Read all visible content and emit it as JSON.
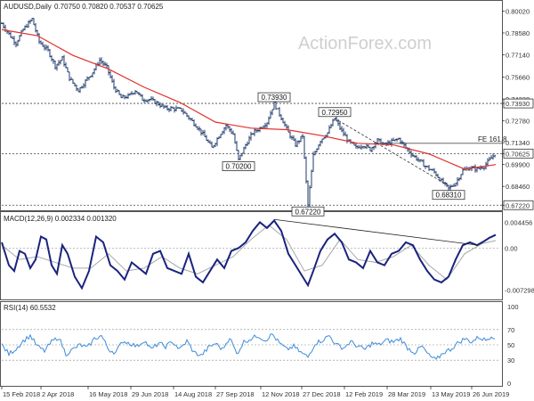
{
  "chart_data": [
    {
      "type": "candlestick",
      "title": "AUDUSD,Daily",
      "ohlc_readout": "0.70750 0.70820 0.70537 0.70625",
      "watermark": "ActionForex.com",
      "last_price": 0.70625,
      "y_ticks": [
        "0.80020",
        "0.78580",
        "0.77140",
        "0.75660",
        "0.74220",
        "0.73930",
        "0.72780",
        "0.71340",
        "0.70625",
        "0.69900",
        "0.68460",
        "0.67220"
      ],
      "y_range": [
        0.67,
        0.804
      ],
      "x_labels": [
        "15 Feb 2018",
        "2 Apr 2018",
        "16 May 2018",
        "29 Jun 2018",
        "14 Aug 2018",
        "27 Sep 2018",
        "12 Nov 2018",
        "27 Dec 2018",
        "12 Feb 2019",
        "28 Mar 2019",
        "13 May 2019",
        "26 Jun 2019"
      ],
      "close_path": [
        [
          0,
          0.792
        ],
        [
          8,
          0.785
        ],
        [
          16,
          0.779
        ],
        [
          24,
          0.788
        ],
        [
          34,
          0.795
        ],
        [
          42,
          0.78
        ],
        [
          52,
          0.774
        ],
        [
          60,
          0.764
        ],
        [
          68,
          0.769
        ],
        [
          76,
          0.756
        ],
        [
          86,
          0.748
        ],
        [
          94,
          0.754
        ],
        [
          102,
          0.76
        ],
        [
          110,
          0.768
        ],
        [
          118,
          0.763
        ],
        [
          126,
          0.75
        ],
        [
          134,
          0.743
        ],
        [
          142,
          0.744
        ],
        [
          150,
          0.748
        ],
        [
          158,
          0.742
        ],
        [
          166,
          0.742
        ],
        [
          176,
          0.739
        ],
        [
          184,
          0.736
        ],
        [
          192,
          0.736
        ],
        [
          202,
          0.735
        ],
        [
          210,
          0.73
        ],
        [
          218,
          0.725
        ],
        [
          226,
          0.719
        ],
        [
          236,
          0.71
        ],
        [
          244,
          0.718
        ],
        [
          252,
          0.725
        ],
        [
          260,
          0.719
        ],
        [
          266,
          0.702
        ],
        [
          274,
          0.712
        ],
        [
          282,
          0.72
        ],
        [
          290,
          0.723
        ],
        [
          298,
          0.727
        ],
        [
          306,
          0.7393
        ],
        [
          314,
          0.73
        ],
        [
          322,
          0.72
        ],
        [
          330,
          0.712
        ],
        [
          338,
          0.718
        ],
        [
          344,
          0.6722
        ],
        [
          350,
          0.705
        ],
        [
          358,
          0.715
        ],
        [
          366,
          0.72
        ],
        [
          374,
          0.7295
        ],
        [
          382,
          0.721
        ],
        [
          390,
          0.714
        ],
        [
          398,
          0.71
        ],
        [
          406,
          0.712
        ],
        [
          414,
          0.709
        ],
        [
          422,
          0.715
        ],
        [
          430,
          0.712
        ],
        [
          438,
          0.714
        ],
        [
          446,
          0.716
        ],
        [
          454,
          0.71
        ],
        [
          462,
          0.705
        ],
        [
          470,
          0.701
        ],
        [
          478,
          0.697
        ],
        [
          486,
          0.694
        ],
        [
          494,
          0.688
        ],
        [
          502,
          0.6831
        ],
        [
          510,
          0.687
        ],
        [
          518,
          0.695
        ],
        [
          526,
          0.697
        ],
        [
          534,
          0.696
        ],
        [
          542,
          0.698
        ],
        [
          548,
          0.702
        ],
        [
          554,
          0.7062
        ]
      ],
      "sma_path": [
        [
          0,
          0.788
        ],
        [
          40,
          0.784
        ],
        [
          80,
          0.771
        ],
        [
          120,
          0.762
        ],
        [
          160,
          0.75
        ],
        [
          200,
          0.74
        ],
        [
          240,
          0.727
        ],
        [
          280,
          0.723
        ],
        [
          320,
          0.722
        ],
        [
          360,
          0.718
        ],
        [
          400,
          0.713
        ],
        [
          440,
          0.712
        ],
        [
          480,
          0.706
        ],
        [
          520,
          0.696
        ],
        [
          555,
          0.699
        ]
      ],
      "horizontal_levels": [
        0.7393,
        0.7062,
        0.6722
      ],
      "fe_level": 0.713,
      "fe_label": "FE 161.8",
      "price_labels": [
        {
          "text": "0.73930",
          "x": 306,
          "y": 0.7393,
          "pos": "above"
        },
        {
          "text": "0.72950",
          "x": 374,
          "y": 0.7295,
          "pos": "above"
        },
        {
          "text": "0.70200",
          "x": 266,
          "y": 0.702,
          "pos": "below"
        },
        {
          "text": "0.68310",
          "x": 502,
          "y": 0.6831,
          "pos": "below"
        },
        {
          "text": "0.67220",
          "x": 344,
          "y": 0.6722,
          "pos": "below"
        }
      ],
      "trend_lines": [
        {
          "from": [
            374,
            0.7295
          ],
          "to": [
            505,
            0.684
          ]
        }
      ]
    },
    {
      "type": "line",
      "title": "MACD(12,26,9) 0.002334 0.001320",
      "y_ticks": [
        "0.004456",
        "0.00",
        "-0.007298"
      ],
      "y_range": [
        -0.0085,
        0.0055
      ],
      "macd_path": [
        [
          0,
          0.001
        ],
        [
          8,
          -0.003
        ],
        [
          14,
          -0.004
        ],
        [
          20,
          -0.0005
        ],
        [
          26,
          -0.001
        ],
        [
          32,
          -0.0035
        ],
        [
          38,
          -0.002
        ],
        [
          44,
          0.002
        ],
        [
          50,
          0.0015
        ],
        [
          56,
          -0.003
        ],
        [
          62,
          -0.0045
        ],
        [
          68,
          0.0005
        ],
        [
          74,
          -0.001
        ],
        [
          82,
          -0.005
        ],
        [
          90,
          -0.007
        ],
        [
          98,
          -0.004
        ],
        [
          106,
          0.002
        ],
        [
          114,
          0.001
        ],
        [
          122,
          -0.003
        ],
        [
          130,
          -0.004
        ],
        [
          138,
          -0.0055
        ],
        [
          146,
          -0.0025
        ],
        [
          154,
          -0.0035
        ],
        [
          162,
          -0.0045
        ],
        [
          170,
          -0.001
        ],
        [
          178,
          -0.0005
        ],
        [
          186,
          -0.0035
        ],
        [
          194,
          -0.004
        ],
        [
          202,
          -0.0045
        ],
        [
          210,
          -0.001
        ],
        [
          218,
          -0.005
        ],
        [
          226,
          -0.006
        ],
        [
          234,
          -0.004
        ],
        [
          242,
          -0.002
        ],
        [
          250,
          -0.0035
        ],
        [
          258,
          -0.0005
        ],
        [
          266,
          0.0
        ],
        [
          274,
          0.001
        ],
        [
          282,
          0.003
        ],
        [
          290,
          0.0045
        ],
        [
          298,
          0.0035
        ],
        [
          306,
          0.0048
        ],
        [
          314,
          0.003
        ],
        [
          322,
          -0.001
        ],
        [
          330,
          -0.003
        ],
        [
          338,
          -0.005
        ],
        [
          344,
          -0.0065
        ],
        [
          350,
          -0.004
        ],
        [
          358,
          -0.0005
        ],
        [
          366,
          0.0015
        ],
        [
          374,
          0.0025
        ],
        [
          382,
          0.001
        ],
        [
          390,
          -0.002
        ],
        [
          398,
          -0.0025
        ],
        [
          406,
          -0.0035
        ],
        [
          414,
          -0.0005
        ],
        [
          422,
          -0.0025
        ],
        [
          430,
          -0.003
        ],
        [
          438,
          -0.001
        ],
        [
          446,
          -0.0005
        ],
        [
          454,
          0.001
        ],
        [
          462,
          0.0005
        ],
        [
          470,
          -0.002
        ],
        [
          478,
          -0.004
        ],
        [
          486,
          -0.0055
        ],
        [
          494,
          -0.006
        ],
        [
          502,
          -0.005
        ],
        [
          510,
          -0.002
        ],
        [
          518,
          0.0005
        ],
        [
          526,
          0.001
        ],
        [
          534,
          0.0005
        ],
        [
          542,
          0.0012
        ],
        [
          548,
          0.0018
        ],
        [
          555,
          0.0023
        ]
      ],
      "signal_path": [
        [
          0,
          0.0005
        ],
        [
          20,
          -0.002
        ],
        [
          40,
          -0.0015
        ],
        [
          60,
          -0.0025
        ],
        [
          80,
          -0.0035
        ],
        [
          100,
          -0.0035
        ],
        [
          120,
          -0.001
        ],
        [
          140,
          -0.004
        ],
        [
          160,
          -0.0035
        ],
        [
          180,
          -0.0015
        ],
        [
          200,
          -0.0035
        ],
        [
          220,
          -0.0045
        ],
        [
          240,
          -0.003
        ],
        [
          260,
          -0.0015
        ],
        [
          280,
          0.0015
        ],
        [
          300,
          0.004
        ],
        [
          320,
          0.0015
        ],
        [
          340,
          -0.004
        ],
        [
          360,
          -0.003
        ],
        [
          380,
          0.0015
        ],
        [
          400,
          -0.002
        ],
        [
          420,
          -0.0025
        ],
        [
          440,
          -0.0015
        ],
        [
          460,
          0.0005
        ],
        [
          480,
          -0.003
        ],
        [
          500,
          -0.0055
        ],
        [
          520,
          -0.001
        ],
        [
          540,
          0.0008
        ],
        [
          555,
          0.0013
        ]
      ],
      "trend_lines": [
        {
          "from": [
            306,
            0.005
          ],
          "to": [
            535,
            0.0005
          ]
        }
      ]
    },
    {
      "type": "line",
      "title": "RSI(14) 60.5532",
      "y_ticks": [
        "100",
        "70",
        "50",
        "30",
        "0"
      ],
      "y_range": [
        0,
        100
      ],
      "rsi_path": [
        [
          0,
          50
        ],
        [
          8,
          38
        ],
        [
          16,
          45
        ],
        [
          24,
          55
        ],
        [
          32,
          62
        ],
        [
          40,
          48
        ],
        [
          48,
          42
        ],
        [
          56,
          54
        ],
        [
          64,
          60
        ],
        [
          72,
          38
        ],
        [
          80,
          44
        ],
        [
          88,
          50
        ],
        [
          96,
          46
        ],
        [
          104,
          58
        ],
        [
          112,
          62
        ],
        [
          120,
          44
        ],
        [
          128,
          40
        ],
        [
          136,
          55
        ],
        [
          144,
          52
        ],
        [
          152,
          48
        ],
        [
          160,
          56
        ],
        [
          168,
          44
        ],
        [
          176,
          52
        ],
        [
          184,
          48
        ],
        [
          192,
          54
        ],
        [
          200,
          44
        ],
        [
          208,
          55
        ],
        [
          216,
          40
        ],
        [
          224,
          36
        ],
        [
          232,
          46
        ],
        [
          240,
          52
        ],
        [
          248,
          44
        ],
        [
          256,
          60
        ],
        [
          264,
          38
        ],
        [
          272,
          54
        ],
        [
          280,
          58
        ],
        [
          288,
          62
        ],
        [
          296,
          56
        ],
        [
          304,
          64
        ],
        [
          312,
          52
        ],
        [
          320,
          44
        ],
        [
          328,
          48
        ],
        [
          336,
          40
        ],
        [
          344,
          34
        ],
        [
          352,
          52
        ],
        [
          360,
          56
        ],
        [
          368,
          62
        ],
        [
          376,
          50
        ],
        [
          384,
          46
        ],
        [
          392,
          54
        ],
        [
          400,
          48
        ],
        [
          408,
          44
        ],
        [
          416,
          52
        ],
        [
          424,
          50
        ],
        [
          432,
          56
        ],
        [
          440,
          54
        ],
        [
          448,
          58
        ],
        [
          456,
          46
        ],
        [
          464,
          40
        ],
        [
          472,
          48
        ],
        [
          480,
          36
        ],
        [
          488,
          30
        ],
        [
          496,
          40
        ],
        [
          504,
          44
        ],
        [
          512,
          52
        ],
        [
          520,
          58
        ],
        [
          528,
          54
        ],
        [
          536,
          60
        ],
        [
          544,
          56
        ],
        [
          550,
          62
        ],
        [
          555,
          60
        ]
      ]
    }
  ]
}
